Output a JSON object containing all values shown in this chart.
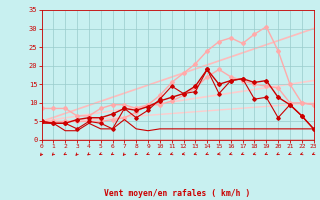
{
  "bg_color": "#c8f0f0",
  "grid_color": "#99cccc",
  "xlabel": "Vent moyen/en rafales ( km/h )",
  "xlabel_color": "#cc0000",
  "tick_color": "#cc0000",
  "xmin": 0,
  "xmax": 23,
  "ymin": 0,
  "ymax": 35,
  "yticks": [
    0,
    5,
    10,
    15,
    20,
    25,
    30,
    35
  ],
  "xticks": [
    0,
    1,
    2,
    3,
    4,
    5,
    6,
    7,
    8,
    9,
    10,
    11,
    12,
    13,
    14,
    15,
    16,
    17,
    18,
    19,
    20,
    21,
    22,
    23
  ],
  "series": [
    {
      "x": [
        0,
        1,
        2,
        3,
        4,
        5,
        6,
        7,
        8,
        9,
        10,
        11,
        12,
        13,
        14,
        15,
        16,
        17,
        18,
        19,
        20,
        21,
        22,
        23
      ],
      "y": [
        5.0,
        4.5,
        4.5,
        5.5,
        6.0,
        6.0,
        7.0,
        8.5,
        8.0,
        9.0,
        10.5,
        11.5,
        12.5,
        14.5,
        19.0,
        15.0,
        16.0,
        16.5,
        15.5,
        16.0,
        11.5,
        9.5,
        6.5,
        3.0
      ],
      "color": "#cc0000",
      "lw": 1.0,
      "marker": "D",
      "ms": 2.0,
      "zorder": 5
    },
    {
      "x": [
        0,
        1,
        2,
        3,
        4,
        5,
        6,
        7,
        8,
        9,
        10,
        11,
        12,
        13,
        14,
        15,
        16,
        17,
        18,
        19,
        20,
        21,
        22,
        23
      ],
      "y": [
        5.0,
        4.5,
        4.5,
        3.0,
        5.0,
        4.5,
        3.0,
        8.5,
        6.0,
        8.0,
        11.0,
        14.5,
        12.5,
        13.0,
        19.0,
        12.5,
        16.0,
        16.5,
        11.0,
        11.5,
        6.0,
        9.5,
        6.5,
        3.0
      ],
      "color": "#cc0000",
      "lw": 0.8,
      "marker": "D",
      "ms": 1.8,
      "zorder": 4
    },
    {
      "x": [
        0,
        1,
        2,
        3,
        4,
        5,
        6,
        7,
        8,
        9,
        10,
        11,
        12,
        13,
        14,
        15,
        16,
        17,
        18,
        19,
        20,
        21,
        22,
        23
      ],
      "y": [
        4.5,
        4.5,
        2.5,
        2.5,
        4.5,
        3.0,
        3.0,
        5.5,
        3.0,
        2.5,
        3.0,
        3.0,
        3.0,
        3.0,
        3.0,
        3.0,
        3.0,
        3.0,
        3.0,
        3.0,
        3.0,
        3.0,
        3.0,
        3.0
      ],
      "color": "#cc0000",
      "lw": 0.8,
      "marker": null,
      "ms": 0,
      "zorder": 3
    },
    {
      "x": [
        0,
        1,
        2,
        3,
        4,
        5,
        6,
        7,
        8,
        9,
        10,
        11,
        12,
        13,
        14,
        15,
        16,
        17,
        18,
        19,
        20,
        21,
        22,
        23
      ],
      "y": [
        8.5,
        8.5,
        8.5,
        6.5,
        6.5,
        8.5,
        9.5,
        9.5,
        8.5,
        9.5,
        9.5,
        10.5,
        12.0,
        14.0,
        17.0,
        19.0,
        17.0,
        16.0,
        15.0,
        14.5,
        14.0,
        10.0,
        10.0,
        9.5
      ],
      "color": "#ffaaaa",
      "lw": 1.0,
      "marker": "D",
      "ms": 2.0,
      "zorder": 2
    },
    {
      "x": [
        0,
        1,
        2,
        3,
        4,
        5,
        6,
        7,
        8,
        9,
        10,
        11,
        12,
        13,
        14,
        15,
        16,
        17,
        18,
        19,
        20,
        21,
        22,
        23
      ],
      "y": [
        5.0,
        5.0,
        5.0,
        5.0,
        5.0,
        5.0,
        5.5,
        6.0,
        7.5,
        9.5,
        12.0,
        15.5,
        18.0,
        20.5,
        24.0,
        26.5,
        27.5,
        26.0,
        28.5,
        30.5,
        24.0,
        15.0,
        10.0,
        9.5
      ],
      "color": "#ffaaaa",
      "lw": 1.0,
      "marker": "D",
      "ms": 2.0,
      "zorder": 2
    },
    {
      "x": [
        0,
        23
      ],
      "y": [
        5.0,
        30.0
      ],
      "color": "#ffbbbb",
      "lw": 1.2,
      "marker": null,
      "ms": 0,
      "zorder": 1
    },
    {
      "x": [
        0,
        23
      ],
      "y": [
        5.0,
        16.0
      ],
      "color": "#ffcccc",
      "lw": 1.2,
      "marker": null,
      "ms": 0,
      "zorder": 1
    },
    {
      "x": [
        0,
        23
      ],
      "y": [
        4.5,
        10.0
      ],
      "color": "#ffcccc",
      "lw": 1.0,
      "marker": null,
      "ms": 0,
      "zorder": 1
    }
  ],
  "arrow_angles": [
    220,
    210,
    200,
    215,
    205,
    195,
    200,
    215,
    200,
    195,
    200,
    190,
    185,
    190,
    195,
    185,
    190,
    195,
    190,
    195,
    200,
    195,
    190,
    195
  ],
  "arrow_color": "#cc0000",
  "hline_color": "#cc0000"
}
